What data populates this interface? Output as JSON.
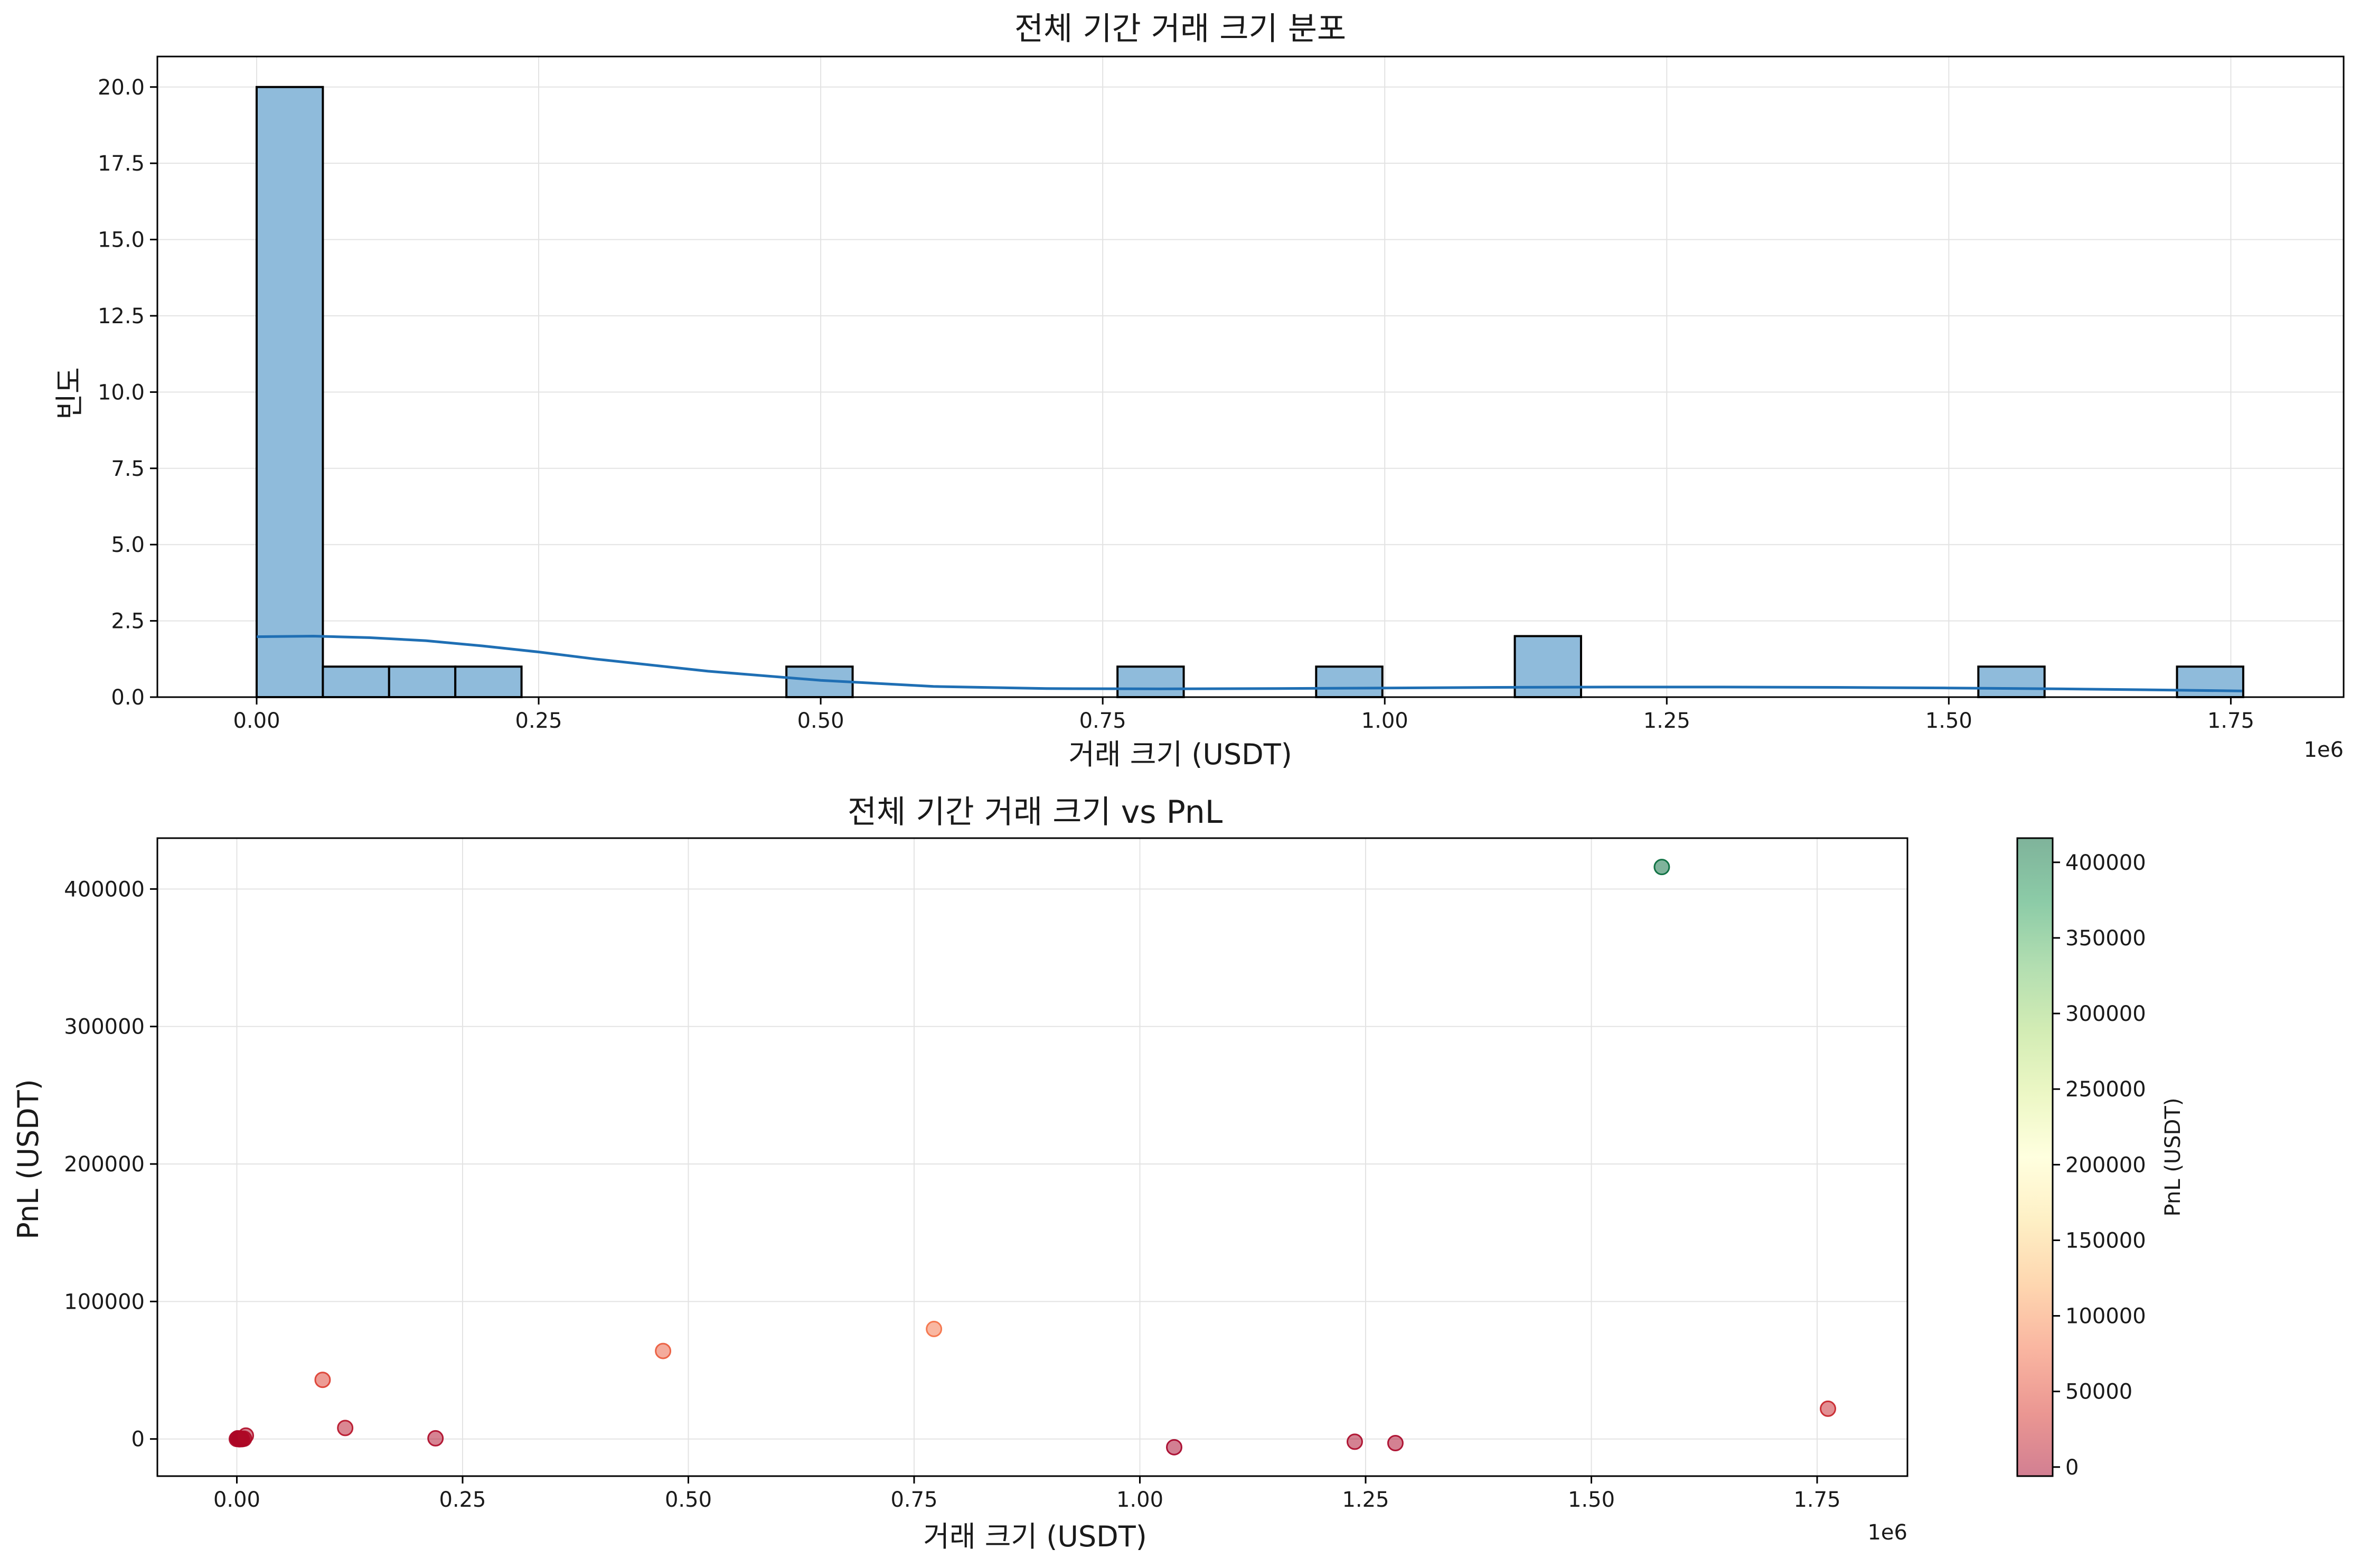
{
  "chart_data": [
    {
      "type": "bar",
      "subtype": "histogram-with-kde",
      "title": "전체 기간 거래 크기 분포",
      "xlabel": "거래 크기 (USDT)",
      "ylabel": "빈도",
      "x_offset_text": "1e6",
      "xlim": [
        -0.088,
        1.85
      ],
      "ylim": [
        0,
        21
      ],
      "grid": true,
      "xticks": [
        0.0,
        0.25,
        0.5,
        0.75,
        1.0,
        1.25,
        1.5,
        1.75
      ],
      "xtick_labels": [
        "0.00",
        "0.25",
        "0.50",
        "0.75",
        "1.00",
        "1.25",
        "1.50",
        "1.75"
      ],
      "yticks": [
        0.0,
        2.5,
        5.0,
        7.5,
        10.0,
        12.5,
        15.0,
        17.5,
        20.0
      ],
      "ytick_labels": [
        "0.0",
        "2.5",
        "5.0",
        "7.5",
        "10.0",
        "12.5",
        "15.0",
        "17.5",
        "20.0"
      ],
      "bin_start": 0.0,
      "bin_width": 0.0587,
      "counts": [
        20,
        1,
        1,
        1,
        0,
        0,
        0,
        0,
        1,
        0,
        0,
        0,
        0,
        1,
        0,
        0,
        1,
        0,
        0,
        2,
        0,
        0,
        0,
        0,
        0,
        0,
        1,
        0,
        0,
        1
      ],
      "bar_color": "#8fbbdb",
      "edge_color": "#000000",
      "kde": {
        "x": [
          0.0,
          0.05,
          0.1,
          0.15,
          0.2,
          0.25,
          0.3,
          0.4,
          0.5,
          0.6,
          0.7,
          0.8,
          0.9,
          1.0,
          1.1,
          1.2,
          1.3,
          1.4,
          1.5,
          1.6,
          1.7,
          1.76
        ],
        "y": [
          1.98,
          2.0,
          1.95,
          1.85,
          1.68,
          1.48,
          1.25,
          0.85,
          0.55,
          0.35,
          0.28,
          0.27,
          0.28,
          0.3,
          0.32,
          0.33,
          0.33,
          0.32,
          0.3,
          0.27,
          0.23,
          0.2
        ],
        "color": "#1f6fb4"
      }
    },
    {
      "type": "scatter",
      "title": "전체 기간 거래 크기 vs PnL",
      "xlabel": "거래 크기 (USDT)",
      "ylabel": "PnL (USDT)",
      "x_offset_text": "1e6",
      "xlim": [
        -0.088,
        1.85
      ],
      "ylim": [
        -27000,
        437000
      ],
      "grid": true,
      "xticks": [
        0.0,
        0.25,
        0.5,
        0.75,
        1.0,
        1.25,
        1.5,
        1.75
      ],
      "xtick_labels": [
        "0.00",
        "0.25",
        "0.50",
        "0.75",
        "1.00",
        "1.25",
        "1.50",
        "1.75"
      ],
      "yticks": [
        0,
        100000,
        200000,
        300000,
        400000
      ],
      "ytick_labels": [
        "0",
        "100000",
        "200000",
        "300000",
        "400000"
      ],
      "points": [
        {
          "x": 0.0,
          "y": 0
        },
        {
          "x": 0.001,
          "y": 500
        },
        {
          "x": 0.002,
          "y": 0
        },
        {
          "x": 0.003,
          "y": -200
        },
        {
          "x": 0.004,
          "y": 300
        },
        {
          "x": 0.005,
          "y": 0
        },
        {
          "x": 0.006,
          "y": -100
        },
        {
          "x": 0.008,
          "y": 200
        },
        {
          "x": 0.01,
          "y": 2500
        },
        {
          "x": 0.095,
          "y": 43000
        },
        {
          "x": 0.12,
          "y": 8000
        },
        {
          "x": 0.22,
          "y": 500
        },
        {
          "x": 0.472,
          "y": 64000
        },
        {
          "x": 0.772,
          "y": 80000
        },
        {
          "x": 1.038,
          "y": -6000
        },
        {
          "x": 1.238,
          "y": -2000
        },
        {
          "x": 1.283,
          "y": -3000
        },
        {
          "x": 1.578,
          "y": 416000
        },
        {
          "x": 1.762,
          "y": 22000
        }
      ],
      "colormap": "RdYlGn",
      "marker_alpha": 0.5,
      "colorbar": {
        "label": "PnL (USDT)",
        "range": [
          -6000,
          416000
        ],
        "ticks": [
          0,
          50000,
          100000,
          150000,
          200000,
          250000,
          300000,
          350000,
          400000
        ],
        "tick_labels": [
          "0",
          "50000",
          "100000",
          "150000",
          "200000",
          "250000",
          "300000",
          "350000",
          "400000"
        ]
      }
    }
  ]
}
